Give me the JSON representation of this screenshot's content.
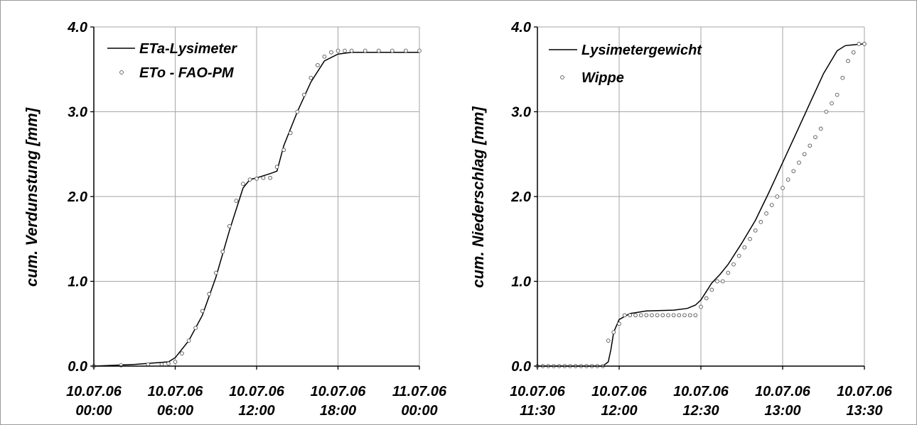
{
  "chart_data": [
    {
      "type": "line",
      "ylabel": "cum. Verdunstung [mm]",
      "ylim": [
        0,
        4
      ],
      "yticks": [
        "0.0",
        "1.0",
        "2.0",
        "3.0",
        "4.0"
      ],
      "xlim": [
        0,
        24
      ],
      "xtick_labels": [
        {
          "date": "10.07.06",
          "time": "00:00"
        },
        {
          "date": "10.07.06",
          "time": "06:00"
        },
        {
          "date": "10.07.06",
          "time": "12:00"
        },
        {
          "date": "10.07.06",
          "time": "18:00"
        },
        {
          "date": "11.07.06",
          "time": "00:00"
        }
      ],
      "grid": true,
      "legend_position": "top-left",
      "series": [
        {
          "name": "ETa-Lysimeter",
          "style": "line",
          "x": [
            0,
            3,
            5.5,
            6,
            7,
            8,
            9,
            10,
            11,
            11.5,
            12,
            13,
            13.5,
            14,
            15,
            16,
            17,
            18,
            19,
            20,
            22,
            24
          ],
          "y": [
            0,
            0.02,
            0.05,
            0.1,
            0.3,
            0.6,
            1.05,
            1.6,
            2.1,
            2.2,
            2.22,
            2.27,
            2.3,
            2.6,
            3.0,
            3.35,
            3.6,
            3.68,
            3.7,
            3.7,
            3.7,
            3.7
          ]
        },
        {
          "name": "ETo - FAO-PM",
          "style": "markers",
          "x": [
            0,
            2,
            4,
            5,
            5.5,
            6,
            6.5,
            7,
            7.5,
            8,
            8.5,
            9,
            9.5,
            10,
            10.5,
            11,
            11.5,
            12,
            12.5,
            13,
            13.5,
            14,
            14.5,
            15,
            15.5,
            16,
            16.5,
            17,
            17.5,
            18,
            18.5,
            19,
            20,
            21,
            22,
            23,
            24
          ],
          "y": [
            0,
            0.01,
            0.02,
            0.02,
            0.03,
            0.05,
            0.15,
            0.3,
            0.45,
            0.65,
            0.85,
            1.1,
            1.35,
            1.65,
            1.95,
            2.15,
            2.2,
            2.21,
            2.22,
            2.22,
            2.35,
            2.55,
            2.75,
            3.0,
            3.2,
            3.4,
            3.55,
            3.65,
            3.7,
            3.72,
            3.72,
            3.72,
            3.72,
            3.72,
            3.72,
            3.72,
            3.72
          ]
        }
      ]
    },
    {
      "type": "line",
      "ylabel": "cum. Niederschlag [mm]",
      "ylim": [
        0,
        4
      ],
      "yticks": [
        "0.0",
        "1.0",
        "2.0",
        "3.0",
        "4.0"
      ],
      "xlim": [
        0,
        120
      ],
      "xtick_labels": [
        {
          "date": "10.07.06",
          "time": "11:30"
        },
        {
          "date": "10.07.06",
          "time": "12:00"
        },
        {
          "date": "10.07.06",
          "time": "12:30"
        },
        {
          "date": "10.07.06",
          "time": "13:00"
        },
        {
          "date": "10.07.06",
          "time": "13:30"
        }
      ],
      "grid": true,
      "legend_position": "top-left",
      "series": [
        {
          "name": "Lysimetergewicht",
          "style": "line",
          "x": [
            0,
            24,
            26,
            27,
            28,
            30,
            34,
            40,
            50,
            55,
            58,
            60,
            62,
            64,
            67,
            70,
            75,
            80,
            85,
            90,
            95,
            100,
            105,
            110,
            113,
            116,
            120
          ],
          "y": [
            0,
            0,
            0.05,
            0.2,
            0.4,
            0.55,
            0.62,
            0.65,
            0.66,
            0.68,
            0.72,
            0.78,
            0.88,
            0.98,
            1.08,
            1.2,
            1.45,
            1.72,
            2.05,
            2.4,
            2.75,
            3.1,
            3.45,
            3.72,
            3.78,
            3.79,
            3.8
          ]
        },
        {
          "name": "Wippe",
          "style": "markers",
          "x": [
            0,
            2,
            4,
            6,
            8,
            10,
            12,
            14,
            16,
            18,
            20,
            22,
            24,
            26,
            28,
            30,
            32,
            34,
            36,
            38,
            40,
            42,
            44,
            46,
            48,
            50,
            52,
            54,
            56,
            58,
            60,
            62,
            64,
            66,
            68,
            70,
            72,
            74,
            76,
            78,
            80,
            82,
            84,
            86,
            88,
            90,
            92,
            94,
            96,
            98,
            100,
            102,
            104,
            106,
            108,
            110,
            112,
            114,
            116,
            118,
            120
          ],
          "y": [
            0,
            0,
            0,
            0,
            0,
            0,
            0,
            0,
            0,
            0,
            0,
            0,
            0,
            0.3,
            0.4,
            0.5,
            0.6,
            0.6,
            0.6,
            0.6,
            0.6,
            0.6,
            0.6,
            0.6,
            0.6,
            0.6,
            0.6,
            0.6,
            0.6,
            0.6,
            0.7,
            0.8,
            0.9,
            1.0,
            1.0,
            1.1,
            1.2,
            1.3,
            1.4,
            1.5,
            1.6,
            1.7,
            1.8,
            1.9,
            2.0,
            2.1,
            2.2,
            2.3,
            2.4,
            2.5,
            2.6,
            2.7,
            2.8,
            3.0,
            3.1,
            3.2,
            3.4,
            3.6,
            3.7,
            3.8,
            3.8
          ]
        }
      ]
    }
  ]
}
